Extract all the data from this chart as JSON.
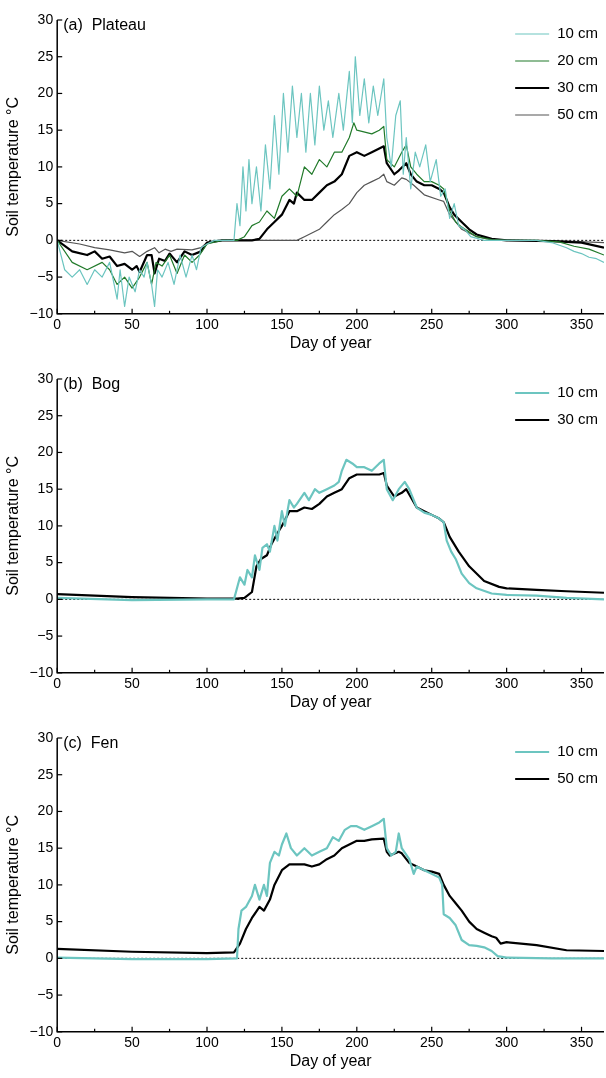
{
  "chart_data": [
    {
      "type": "line",
      "title": "(a)  Plateau",
      "xlabel": "Day of year",
      "ylabel": "Soil temperature °C",
      "legend": "top right",
      "grid": false,
      "xlim": [
        0,
        365
      ],
      "ylim": [
        -10,
        30
      ],
      "xticks": [
        0,
        {
          "value": 25,
          "label": null
        },
        50,
        {
          "value": 75,
          "label": null
        },
        100,
        {
          "value": 125,
          "label": null
        },
        150,
        {
          "value": 175,
          "label": null
        },
        200,
        {
          "value": 225,
          "label": null
        },
        250,
        {
          "value": 275,
          "label": null
        },
        300,
        {
          "value": 325,
          "label": null
        },
        350
      ],
      "yticks": [
        -10,
        -5,
        0,
        5,
        10,
        15,
        20,
        25,
        30
      ],
      "ref_lines": [
        {
          "axis": "y",
          "value": 0,
          "line_style": "dotted",
          "color": "#000000"
        }
      ],
      "series": [
        {
          "name": "10 cm",
          "color": "#6cc5c0",
          "x": [
            0,
            5,
            10,
            15,
            20,
            25,
            30,
            35,
            40,
            42,
            45,
            48,
            52,
            55,
            58,
            60,
            63,
            65,
            67,
            70,
            74,
            78,
            82,
            86,
            90,
            93,
            96,
            100,
            105,
            110,
            115,
            118,
            120,
            122,
            124,
            126,
            128,
            130,
            133,
            136,
            139,
            142,
            145,
            148,
            151,
            154,
            157,
            160,
            163,
            166,
            169,
            172,
            175,
            178,
            181,
            184,
            188,
            191,
            195,
            197,
            199,
            202,
            205,
            208,
            211,
            214,
            218,
            220,
            223,
            226,
            229,
            231,
            233,
            236,
            239,
            242,
            246,
            249,
            253,
            256,
            259,
            262,
            265,
            268,
            272,
            276,
            285,
            300,
            320,
            330,
            340,
            345,
            350,
            355,
            360,
            365
          ],
          "values": [
            0,
            -4,
            -5,
            -4,
            -6,
            -4,
            -5,
            -3,
            -8,
            -4,
            -9,
            -5,
            -7,
            -4,
            -5,
            -3,
            -6,
            -9,
            -4,
            -5,
            -3,
            -6,
            -2,
            -5,
            -2,
            -4,
            -1,
            -0.5,
            0,
            0,
            0,
            0,
            5,
            2,
            10,
            4,
            11,
            5,
            10,
            4,
            13,
            7,
            17,
            9,
            20,
            12,
            21,
            14,
            20,
            12,
            20,
            13,
            21,
            15,
            19,
            14,
            20,
            15,
            23,
            16,
            25,
            17,
            22,
            16,
            21,
            17,
            22,
            14,
            10,
            17,
            19,
            9,
            14,
            7,
            12,
            10,
            13,
            8,
            11,
            6,
            7,
            3,
            5,
            2,
            1.5,
            0.5,
            0,
            0,
            0,
            -0.3,
            -1,
            -1.5,
            -1.8,
            -2.3,
            -2.5,
            -3
          ]
        },
        {
          "name": "20 cm",
          "color": "#217a2a",
          "x": [
            0,
            10,
            20,
            30,
            35,
            40,
            45,
            50,
            55,
            60,
            63,
            66,
            70,
            75,
            80,
            85,
            90,
            95,
            100,
            110,
            120,
            125,
            130,
            135,
            140,
            145,
            150,
            155,
            160,
            165,
            170,
            175,
            180,
            185,
            190,
            195,
            198,
            200,
            210,
            215,
            218,
            220,
            225,
            230,
            233,
            236,
            240,
            245,
            250,
            255,
            258,
            262,
            266,
            270,
            280,
            290,
            300,
            320,
            335,
            345,
            355,
            365
          ],
          "values": [
            0,
            -3,
            -4,
            -3,
            -4,
            -6,
            -5,
            -6.5,
            -5,
            -3,
            -6,
            -3,
            -3.5,
            -2,
            -4.5,
            -2,
            -3,
            -2,
            -0.5,
            0,
            0,
            0.5,
            2,
            2.5,
            4,
            3,
            6,
            7,
            6,
            10,
            9,
            11,
            10,
            12,
            12,
            14,
            16,
            15,
            14.5,
            15,
            15.5,
            11,
            10,
            12,
            13,
            10,
            9,
            8,
            8,
            7.5,
            7,
            4,
            2.5,
            1.8,
            0.5,
            0.1,
            0,
            0,
            -0.2,
            -0.8,
            -1.2,
            -2
          ]
        },
        {
          "name": "30 cm",
          "color": "#000000",
          "x": [
            0,
            10,
            20,
            25,
            30,
            35,
            40,
            45,
            50,
            53,
            55,
            60,
            63,
            65,
            68,
            72,
            75,
            80,
            85,
            90,
            96,
            100,
            110,
            130,
            135,
            140,
            145,
            150,
            155,
            158,
            160,
            165,
            170,
            175,
            180,
            185,
            190,
            195,
            200,
            205,
            210,
            215,
            218,
            220,
            225,
            228,
            233,
            236,
            240,
            245,
            250,
            255,
            258,
            262,
            265,
            270,
            275,
            280,
            290,
            300,
            330,
            350,
            365
          ],
          "values": [
            0,
            -1.5,
            -2,
            -1.5,
            -2.5,
            -2.2,
            -3.5,
            -3.2,
            -4,
            -3.5,
            -4.3,
            -2,
            -2,
            -4.5,
            -2.5,
            -2.8,
            -1.8,
            -3,
            -1.5,
            -2,
            -1.5,
            -0.3,
            0,
            0,
            0.2,
            1.5,
            2.5,
            3.5,
            5.5,
            5,
            6.5,
            5.5,
            5.5,
            6.5,
            7.5,
            8,
            9,
            11.5,
            12,
            11.5,
            12,
            12.5,
            12.8,
            10.5,
            9,
            9.5,
            10.5,
            9,
            8,
            7.5,
            7.5,
            7,
            6.5,
            4.5,
            3.5,
            2.5,
            1.5,
            0.8,
            0.2,
            0,
            -0.1,
            -0.3,
            -1
          ]
        },
        {
          "name": "50 cm",
          "color": "#555555",
          "x": [
            0,
            15,
            25,
            35,
            45,
            50,
            55,
            60,
            65,
            68,
            72,
            76,
            80,
            90,
            96,
            100,
            110,
            150,
            160,
            165,
            170,
            175,
            180,
            185,
            190,
            195,
            200,
            205,
            210,
            215,
            218,
            220,
            225,
            230,
            233,
            238,
            245,
            255,
            258,
            262,
            266,
            270,
            280,
            290,
            300,
            340,
            365
          ],
          "values": [
            0,
            -0.5,
            -1,
            -1.3,
            -1.7,
            -1.5,
            -2.2,
            -1.5,
            -1,
            -1.7,
            -1.2,
            -1.5,
            -1.2,
            -1.3,
            -1,
            -0.3,
            0,
            0,
            0,
            0.5,
            1,
            1.5,
            2.5,
            3.5,
            4.2,
            5,
            6.5,
            7.5,
            8,
            8.5,
            9,
            8,
            7.5,
            8.5,
            8.3,
            7.5,
            6.2,
            5.5,
            5.3,
            3.5,
            2.5,
            1.5,
            0.5,
            0.1,
            0,
            -0.1,
            -0.3
          ]
        }
      ]
    },
    {
      "type": "line",
      "title": "(b)  Bog",
      "xlabel": "Day of year",
      "ylabel": "Soil temperature °C",
      "legend": "top right",
      "grid": false,
      "xlim": [
        0,
        365
      ],
      "ylim": [
        -10,
        30
      ],
      "xticks": [
        0,
        {
          "value": 25,
          "label": null
        },
        50,
        {
          "value": 75,
          "label": null
        },
        100,
        {
          "value": 125,
          "label": null
        },
        150,
        {
          "value": 175,
          "label": null
        },
        200,
        {
          "value": 225,
          "label": null
        },
        250,
        {
          "value": 275,
          "label": null
        },
        300,
        {
          "value": 325,
          "label": null
        },
        350
      ],
      "yticks": [
        -10,
        -5,
        0,
        5,
        10,
        15,
        20,
        25,
        30
      ],
      "ref_lines": [
        {
          "axis": "y",
          "value": 0,
          "line_style": "dotted",
          "color": "#000000"
        }
      ],
      "series": [
        {
          "name": "10 cm",
          "color": "#6cc5c0",
          "x": [
            0,
            50,
            100,
            118,
            120,
            122,
            125,
            127,
            130,
            132,
            135,
            137,
            140,
            142,
            145,
            147,
            150,
            152,
            155,
            158,
            160,
            165,
            168,
            172,
            175,
            180,
            185,
            188,
            190,
            193,
            197,
            200,
            205,
            210,
            215,
            218,
            220,
            224,
            228,
            232,
            235,
            240,
            245,
            250,
            255,
            258,
            260,
            263,
            266,
            270,
            275,
            280,
            290,
            300,
            320,
            340,
            365
          ],
          "values": [
            0.2,
            -0.1,
            0,
            0,
            1.5,
            3,
            2,
            4,
            3,
            6,
            4,
            7,
            7.5,
            6.5,
            10,
            8,
            12,
            10,
            13.5,
            12.5,
            13,
            14.5,
            13.5,
            15,
            14.5,
            15,
            15.5,
            16,
            17.5,
            19,
            18.5,
            18,
            18,
            17.5,
            18.5,
            19,
            15,
            13.5,
            15,
            16,
            15,
            12.5,
            11.8,
            11.5,
            11,
            10.5,
            8,
            6.5,
            5.5,
            3.5,
            2.2,
            1.5,
            0.8,
            0.6,
            0.5,
            0.2,
            0
          ]
        },
        {
          "name": "30 cm",
          "color": "#000000",
          "x": [
            0,
            50,
            100,
            120,
            125,
            130,
            133,
            136,
            140,
            143,
            147,
            150,
            155,
            160,
            165,
            170,
            175,
            180,
            185,
            190,
            195,
            200,
            205,
            210,
            215,
            218,
            220,
            225,
            230,
            233,
            240,
            245,
            250,
            255,
            258,
            262,
            268,
            275,
            285,
            295,
            300,
            320,
            340,
            365
          ],
          "values": [
            0.7,
            0.3,
            0.1,
            0.1,
            0.2,
            1,
            4.5,
            5.5,
            6,
            7.5,
            9,
            10,
            12,
            12,
            12.5,
            12.3,
            13,
            14,
            14.5,
            15,
            16.5,
            17,
            17,
            17,
            17,
            17.2,
            15.5,
            14,
            14.5,
            15,
            12.5,
            12,
            11.5,
            11,
            10.5,
            8.5,
            6.5,
            4.5,
            2.5,
            1.7,
            1.5,
            1.3,
            1.1,
            0.9
          ]
        }
      ]
    },
    {
      "type": "line",
      "title": "(c)  Fen",
      "xlabel": "Day of year",
      "ylabel": "Soil temperature °C",
      "legend": "top right",
      "grid": false,
      "xlim": [
        0,
        365
      ],
      "ylim": [
        -10,
        30
      ],
      "xticks": [
        0,
        {
          "value": 25,
          "label": null
        },
        50,
        {
          "value": 75,
          "label": null
        },
        100,
        {
          "value": 125,
          "label": null
        },
        150,
        {
          "value": 175,
          "label": null
        },
        200,
        {
          "value": 225,
          "label": null
        },
        250,
        {
          "value": 275,
          "label": null
        },
        300,
        {
          "value": 325,
          "label": null
        },
        350
      ],
      "yticks": [
        -10,
        -5,
        0,
        5,
        10,
        15,
        20,
        25,
        30
      ],
      "ref_lines": [
        {
          "axis": "y",
          "value": 0,
          "line_style": "dotted",
          "color": "#000000"
        }
      ],
      "series": [
        {
          "name": "10 cm",
          "color": "#6cc5c0",
          "x": [
            0,
            50,
            100,
            120,
            121,
            123,
            126,
            130,
            132,
            135,
            138,
            140,
            142,
            145,
            148,
            150,
            153,
            156,
            160,
            165,
            170,
            175,
            180,
            184,
            188,
            192,
            196,
            200,
            205,
            210,
            215,
            218,
            220,
            223,
            226,
            228,
            230,
            235,
            238,
            240,
            245,
            250,
            255,
            257,
            258,
            262,
            266,
            270,
            275,
            280,
            285,
            290,
            294,
            300,
            330,
            365
          ],
          "values": [
            0.1,
            -0.1,
            -0.1,
            0,
            4,
            6.5,
            7,
            8.5,
            10,
            8,
            10,
            8.5,
            13,
            14.5,
            14,
            15.5,
            17,
            15,
            14,
            15,
            14,
            14.5,
            15,
            16.5,
            16,
            17.5,
            18,
            18,
            17.5,
            18,
            18.5,
            19,
            15,
            14,
            14.5,
            17,
            15,
            13.5,
            11.5,
            12.5,
            12,
            11.5,
            11,
            10,
            6,
            5.5,
            4.5,
            2.5,
            1.8,
            1.7,
            1.5,
            1,
            0.3,
            0.1,
            0,
            0
          ]
        },
        {
          "name": "50 cm",
          "color": "#000000",
          "x": [
            0,
            50,
            100,
            118,
            122,
            126,
            130,
            135,
            138,
            142,
            145,
            150,
            155,
            165,
            170,
            175,
            180,
            185,
            190,
            195,
            200,
            205,
            210,
            218,
            220,
            222,
            228,
            230,
            235,
            240,
            245,
            250,
            255,
            258,
            262,
            266,
            270,
            275,
            280,
            285,
            290,
            293,
            296,
            300,
            320,
            340,
            365
          ],
          "values": [
            1.3,
            0.9,
            0.7,
            0.8,
            2,
            4,
            5.5,
            7,
            6.5,
            8,
            10,
            12,
            12.8,
            12.8,
            12.5,
            12.8,
            13.5,
            14,
            15,
            15.5,
            16,
            16,
            16.2,
            16.3,
            14.5,
            14,
            14.5,
            14.3,
            13,
            12.5,
            12,
            11.8,
            11.5,
            10,
            8.5,
            7.5,
            6.5,
            5,
            4,
            3.5,
            3,
            2.8,
            2,
            2.2,
            1.8,
            1.1,
            1
          ]
        }
      ]
    }
  ]
}
